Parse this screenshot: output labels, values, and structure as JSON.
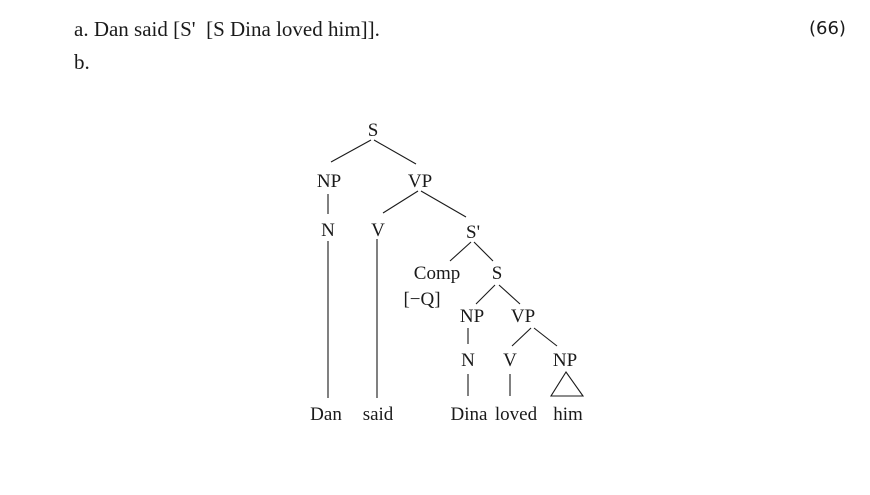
{
  "example": {
    "number": "(66)",
    "line_a": "a. Dan said [S'  [S Dina loved him]].",
    "line_b": "b."
  },
  "tree": {
    "nodes": {
      "s_root": "S",
      "np_subj": "NP",
      "vp_main": "VP",
      "n_subj": "N",
      "v_main": "V",
      "s_bar": "S'",
      "comp": "Comp",
      "comp_feature": "[−Q]",
      "s_emb": "S",
      "np_emb": "NP",
      "vp_emb": "VP",
      "n_emb": "N",
      "v_emb": "V",
      "np_obj": "NP"
    },
    "leaves": {
      "dan": "Dan",
      "said": "said",
      "dina": "Dina",
      "loved": "loved",
      "him": "him"
    }
  }
}
